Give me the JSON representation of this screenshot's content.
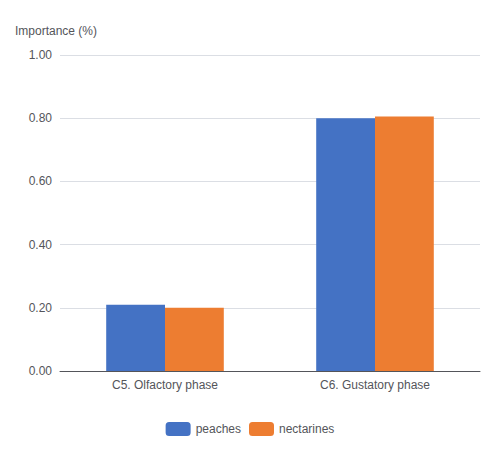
{
  "chart_data": {
    "type": "bar",
    "ylabel": "Importance (%)",
    "categories": [
      "C5. Olfactory phase",
      "C6. Gustatory phase"
    ],
    "series": [
      {
        "name": "peaches",
        "color": "#4472c4",
        "values": [
          0.21,
          0.8
        ]
      },
      {
        "name": "nectarines",
        "color": "#ed7d31",
        "values": [
          0.2,
          0.805
        ]
      }
    ],
    "ylim": [
      0.0,
      1.0
    ],
    "yticks": [
      {
        "value": 0.0,
        "label": "0.00"
      },
      {
        "value": 0.2,
        "label": "0.20"
      },
      {
        "value": 0.4,
        "label": "0.40"
      },
      {
        "value": 0.6,
        "label": "0.60"
      },
      {
        "value": 0.8,
        "label": "0.80"
      },
      {
        "value": 1.0,
        "label": "1.00"
      }
    ],
    "grid": true,
    "legend": "bottom"
  }
}
